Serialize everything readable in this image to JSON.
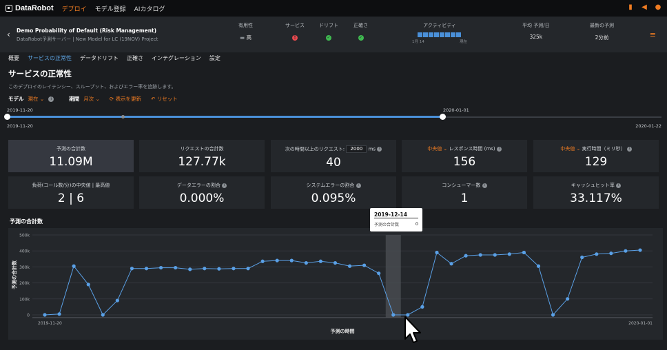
{
  "nav": {
    "logo_text": "DataRobot",
    "items": [
      "デプロイ",
      "モデル登録",
      "AIカタログ"
    ],
    "active_index": 0,
    "icons": [
      "notebook-icon",
      "megaphone-icon",
      "user-icon"
    ]
  },
  "header": {
    "title": "Demo Probability of Default (Risk Management)",
    "subtitle": "DataRobot予測サーバー | New Model for LC (19NOV) Project",
    "columns": {
      "usefulness": {
        "label": "有用性",
        "value": "高"
      },
      "service": {
        "label": "サービス",
        "status": "error"
      },
      "drift": {
        "label": "ドリフト",
        "status": "ok"
      },
      "accuracy": {
        "label": "正確さ",
        "status": "ok"
      },
      "activity": {
        "label": "アクティビティ",
        "axis_start": "1月 14",
        "axis_end": "現在"
      },
      "avg_predictions": {
        "label": "平均 予測/日",
        "value": "325k"
      },
      "latest_prediction": {
        "label": "最新の予測",
        "value": "2分前"
      }
    }
  },
  "tabs": [
    "概要",
    "サービスの正常性",
    "データドリフト",
    "正確さ",
    "インテグレーション",
    "設定"
  ],
  "active_tab": 1,
  "page": {
    "title": "サービスの正常性",
    "description": "このデプロイのレイテンシー、スループット、およびエラー率を追跡します。"
  },
  "controls": {
    "model_label": "モデル",
    "model_value": "現在",
    "period_label": "期間",
    "period_value": "月次",
    "refresh": "表示を更新",
    "reset": "リセット"
  },
  "slider": {
    "start_label": "2019-11-20",
    "end_label": "2020-01-01",
    "min_label": "2019-11-20",
    "max_label": "2020-01-22"
  },
  "metrics": [
    {
      "label": "予測の合計数",
      "value": "11.09M",
      "selected": true
    },
    {
      "label": "リクエストの合計数",
      "value": "127.77k"
    },
    {
      "label_prefix": "次の時間以上のリクエスト:",
      "input_value": "2000",
      "label_suffix": "ms",
      "value": "40"
    },
    {
      "dropdown": "中央値",
      "label": "レスポンス時間 (ms)",
      "value": "156"
    },
    {
      "dropdown": "中央値",
      "label": "実行時間（ミリ秒）",
      "value": "129"
    },
    {
      "label": "負荷(コール数/分)の中央値 | 最高値",
      "value": "2 | 6"
    },
    {
      "label": "データエラーの割合",
      "value": "0.000%"
    },
    {
      "label": "システムエラーの割合",
      "value": "0.095%"
    },
    {
      "label": "コンシューマー数",
      "value": "1"
    },
    {
      "label": "キャッシュヒット率",
      "value": "33.117%"
    }
  ],
  "chart_title": "予測の合計数",
  "chart_data": {
    "type": "line",
    "xlabel": "予測の時間",
    "ylabel": "予測の合計数",
    "ylim": [
      0,
      500000
    ],
    "y_ticks": [
      "0",
      "100k",
      "200k",
      "300k",
      "400k",
      "500k"
    ],
    "x_tick_labels": [
      "2019-11-20",
      "2020-01-01"
    ],
    "x_start": "2019-11-20",
    "x_end": "2020-01-01",
    "highlight_date": "2019-12-14",
    "values": [
      0,
      5000,
      305000,
      190000,
      0,
      90000,
      290000,
      290000,
      295000,
      295000,
      285000,
      290000,
      288000,
      290000,
      290000,
      335000,
      340000,
      340000,
      325000,
      335000,
      325000,
      305000,
      310000,
      260000,
      0,
      0,
      50000,
      390000,
      320000,
      370000,
      375000,
      375000,
      380000,
      390000,
      305000,
      0,
      100000,
      360000,
      380000,
      385000,
      400000,
      405000
    ]
  },
  "tooltip": {
    "date": "2019-12-14",
    "label": "予測の合計数",
    "value": "0"
  }
}
